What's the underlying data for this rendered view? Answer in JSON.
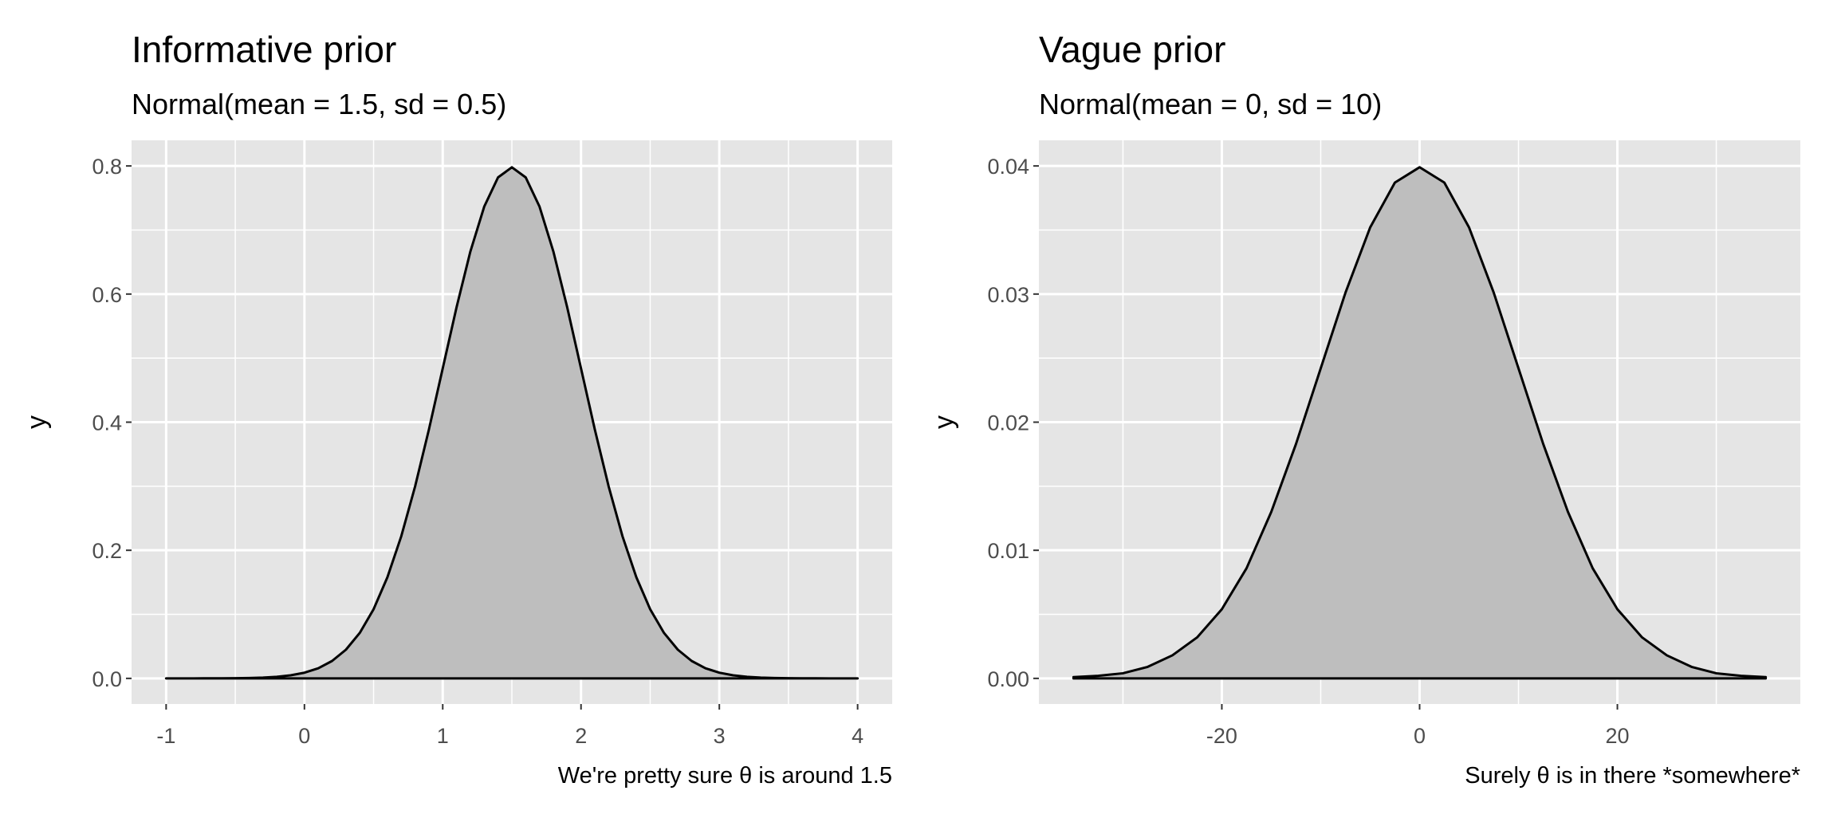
{
  "chart_data": [
    {
      "type": "area",
      "title": "Informative prior",
      "subtitle": "Normal(mean = 1.5, sd = 0.5)",
      "caption": "We're pretty sure θ is around 1.5",
      "y_label": "y",
      "x": [
        -1,
        -0.9,
        -0.8,
        -0.7,
        -0.6,
        -0.5,
        -0.4,
        -0.3,
        -0.2,
        -0.1,
        0,
        0.1,
        0.2,
        0.3,
        0.4,
        0.5,
        0.6,
        0.7,
        0.8,
        0.9,
        1,
        1.1,
        1.2,
        1.3,
        1.4,
        1.5,
        1.6,
        1.7,
        1.8,
        1.9,
        2,
        2.1,
        2.2,
        2.3,
        2.4,
        2.5,
        2.6,
        2.7,
        2.8,
        2.9,
        3,
        3.1,
        3.2,
        3.3,
        3.4,
        3.5,
        3.6,
        3.7,
        3.8,
        3.9,
        4
      ],
      "values": [
        0,
        0,
        0,
        0.0001,
        0.0001,
        0.0003,
        0.0006,
        0.0012,
        0.0025,
        0.0048,
        0.0089,
        0.0158,
        0.0272,
        0.0448,
        0.071,
        0.108,
        0.1579,
        0.2218,
        0.2995,
        0.3884,
        0.4839,
        0.5794,
        0.6665,
        0.7365,
        0.7821,
        0.7979,
        0.7821,
        0.7365,
        0.6665,
        0.5794,
        0.4839,
        0.3884,
        0.2995,
        0.2218,
        0.1579,
        0.108,
        0.071,
        0.0448,
        0.0272,
        0.0158,
        0.0089,
        0.0048,
        0.0025,
        0.0012,
        0.0006,
        0.0003,
        0.0001,
        0.0001,
        0,
        0,
        0
      ],
      "fill_color": "#bebebe",
      "line_color": "#000000",
      "xlim": [
        -1.25,
        4.25
      ],
      "xticks": [
        -1,
        0,
        1,
        2,
        3,
        4
      ],
      "ylim": [
        -0.04,
        0.84
      ],
      "yticks": [
        {
          "value": 0,
          "label": "0.0"
        },
        0.2,
        0.4,
        0.6,
        0.8
      ],
      "grid": true,
      "minor_grid": true
    },
    {
      "type": "area",
      "title": "Vague prior",
      "subtitle": "Normal(mean = 0, sd = 10)",
      "caption": "Surely θ is in there *somewhere*",
      "y_label": "y",
      "x": [
        -35,
        -32.5,
        -30,
        -27.5,
        -25,
        -22.5,
        -20,
        -17.5,
        -15,
        -12.5,
        -10,
        -7.5,
        -5,
        -2.5,
        0,
        2.5,
        5,
        7.5,
        10,
        12.5,
        15,
        17.5,
        20,
        22.5,
        25,
        27.5,
        30,
        32.5,
        35
      ],
      "values": [
        0.0001,
        0.0002,
        0.0004,
        0.0009,
        0.0018,
        0.0032,
        0.0054,
        0.0086,
        0.013,
        0.0183,
        0.0242,
        0.0301,
        0.0352,
        0.0387,
        0.0399,
        0.0387,
        0.0352,
        0.0301,
        0.0242,
        0.0183,
        0.013,
        0.0086,
        0.0054,
        0.0032,
        0.0018,
        0.0009,
        0.0004,
        0.0002,
        0.0001
      ],
      "fill_color": "#bebebe",
      "line_color": "#000000",
      "xlim": [
        -38.5,
        38.5
      ],
      "xticks": [
        -20,
        0,
        20
      ],
      "ylim": [
        -0.002,
        0.042
      ],
      "yticks": [
        {
          "value": 0,
          "label": "0.00"
        },
        0.01,
        0.02,
        0.03,
        0.04
      ],
      "grid": true,
      "minor_grid": true
    }
  ]
}
